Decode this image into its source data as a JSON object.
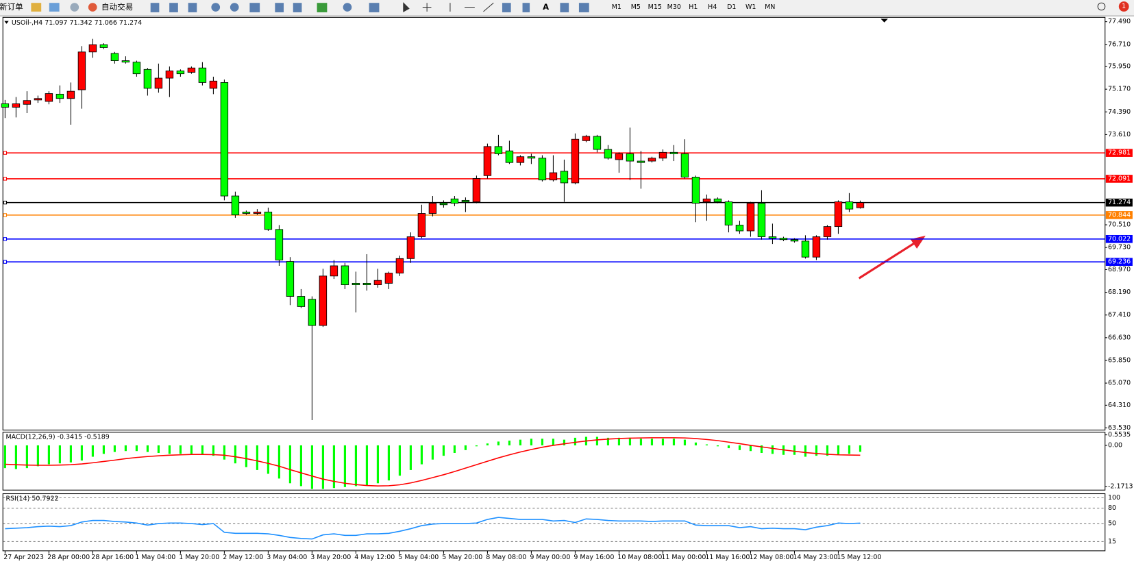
{
  "toolbar": {
    "new_order": "新订单",
    "auto_trade": "自动交易",
    "timeframes": [
      "M1",
      "M5",
      "M15",
      "M30",
      "H1",
      "H4",
      "D1",
      "W1",
      "MN"
    ],
    "badge": "1"
  },
  "chart_data": [
    {
      "type": "candlestick",
      "title": "USOil-,H4  71.097 71.342 71.066 71.274",
      "categories": [
        "27 Apr 2023",
        null,
        null,
        null,
        "28 Apr 00:00",
        null,
        null,
        null,
        "28 Apr 16:00",
        null,
        null,
        null,
        "1 May 04:00",
        null,
        null,
        null,
        "1 May 20:00",
        null,
        null,
        null,
        "2 May 12:00",
        null,
        null,
        null,
        "3 May 04:00",
        null,
        null,
        null,
        "3 May 20:00",
        null,
        null,
        null,
        "4 May 12:00",
        null,
        null,
        null,
        "5 May 04:00",
        null,
        null,
        null,
        "5 May 20:00",
        null,
        null,
        null,
        "8 May 08:00",
        null,
        null,
        null,
        "9 May 00:00",
        null,
        null,
        null,
        "9 May 16:00",
        null,
        null,
        null,
        "10 May 08:00",
        null,
        null,
        null,
        "11 May 00:00",
        null,
        null,
        null,
        "11 May 16:00",
        null,
        null,
        null,
        "12 May 08:00",
        null,
        null,
        null,
        "14 May 23:00",
        null,
        null,
        null,
        "15 May 12:00",
        null,
        null
      ],
      "open": [
        74.67,
        74.55,
        74.65,
        74.8,
        74.75,
        75.0,
        74.85,
        75.15,
        76.45,
        76.7,
        76.4,
        76.15,
        76.1,
        75.85,
        75.2,
        75.55,
        75.8,
        75.75,
        75.9,
        75.2,
        75.4,
        71.5,
        70.95,
        70.9,
        70.95,
        70.35,
        69.25,
        68.05,
        67.95,
        67.05,
        68.75,
        69.1,
        68.5,
        68.5,
        68.45,
        68.5,
        68.85,
        69.35,
        70.1,
        70.9,
        71.25,
        71.4,
        71.35,
        71.3,
        72.2,
        73.2,
        73.05,
        72.65,
        72.85,
        72.8,
        72.05,
        72.35,
        71.95,
        73.4,
        73.55,
        73.1,
        72.75,
        72.95,
        72.7,
        72.7,
        72.8,
        73.0,
        72.95,
        72.15,
        71.3,
        71.4,
        71.3,
        70.5,
        70.3,
        71.25,
        70.1,
        70.05,
        70.0,
        69.95,
        69.4,
        70.1,
        70.45,
        71.3,
        71.097
      ],
      "high": [
        74.8,
        74.9,
        75.1,
        74.95,
        75.1,
        75.3,
        75.4,
        76.65,
        76.9,
        76.75,
        76.45,
        76.3,
        76.15,
        75.9,
        76.05,
        75.95,
        75.85,
        75.95,
        76.1,
        75.6,
        75.5,
        71.65,
        71.0,
        71.05,
        71.1,
        70.5,
        69.4,
        68.3,
        68.05,
        69.0,
        69.3,
        69.2,
        68.9,
        69.5,
        69.0,
        68.9,
        69.45,
        70.25,
        71.2,
        71.5,
        71.35,
        71.5,
        71.45,
        72.2,
        73.3,
        73.6,
        73.4,
        72.9,
        72.95,
        72.9,
        72.9,
        72.75,
        73.65,
        73.6,
        73.6,
        73.25,
        73.0,
        73.85,
        73.05,
        72.85,
        73.1,
        73.25,
        73.45,
        72.2,
        71.55,
        71.45,
        71.35,
        70.65,
        71.3,
        71.7,
        70.55,
        70.1,
        70.05,
        70.15,
        70.15,
        70.5,
        71.35,
        71.6,
        71.342
      ],
      "low": [
        74.18,
        74.2,
        74.35,
        74.7,
        74.65,
        74.7,
        73.95,
        74.5,
        76.25,
        76.55,
        76.05,
        76.05,
        75.6,
        74.95,
        75.05,
        74.9,
        75.6,
        75.7,
        75.3,
        75.0,
        71.35,
        70.75,
        70.85,
        70.85,
        70.3,
        69.1,
        67.75,
        67.65,
        63.8,
        67.0,
        68.65,
        68.3,
        67.5,
        68.25,
        68.35,
        68.3,
        68.75,
        69.2,
        70.05,
        70.8,
        71.1,
        71.15,
        70.95,
        71.25,
        72.1,
        72.9,
        72.6,
        72.55,
        72.6,
        72.0,
        72.0,
        71.3,
        71.9,
        73.35,
        73.0,
        72.75,
        72.3,
        72.05,
        71.75,
        72.65,
        72.7,
        72.7,
        72.1,
        70.6,
        70.65,
        71.25,
        70.25,
        70.2,
        70.1,
        70.0,
        69.85,
        69.95,
        69.9,
        69.35,
        69.3,
        70.0,
        70.2,
        70.95,
        71.066
      ],
      "close": [
        74.55,
        74.67,
        74.78,
        74.85,
        75.02,
        74.85,
        75.1,
        76.45,
        76.7,
        76.6,
        76.15,
        76.1,
        75.7,
        75.2,
        75.55,
        75.8,
        75.7,
        75.9,
        75.4,
        75.45,
        71.5,
        70.85,
        70.9,
        70.95,
        70.35,
        69.3,
        68.05,
        67.7,
        67.05,
        68.75,
        69.1,
        68.45,
        68.45,
        68.45,
        68.6,
        68.85,
        69.35,
        70.1,
        70.9,
        71.25,
        71.2,
        71.25,
        71.3,
        72.1,
        73.2,
        72.95,
        72.65,
        72.85,
        72.8,
        72.05,
        72.3,
        71.95,
        73.45,
        73.55,
        73.1,
        72.8,
        72.95,
        72.7,
        72.65,
        72.8,
        73.0,
        72.95,
        72.15,
        71.25,
        71.4,
        71.3,
        70.5,
        70.3,
        71.25,
        70.1,
        70.05,
        70.0,
        69.95,
        69.4,
        70.1,
        70.45,
        71.3,
        71.05,
        71.274
      ],
      "up_color": "#ff0000",
      "down_color": "#00ff00",
      "ylim": [
        63.455,
        77.639
      ],
      "yticks": [
        {
          "value": 77.49,
          "label": "77.490"
        },
        {
          "value": 76.71,
          "label": "76.710"
        },
        {
          "value": 75.95,
          "label": "75.950"
        },
        {
          "value": 75.17,
          "label": "75.170"
        },
        {
          "value": 74.39,
          "label": "74.390"
        },
        {
          "value": 73.61,
          "label": "73.610"
        },
        {
          "value": 70.51,
          "label": "70.510"
        },
        {
          "value": 69.73,
          "label": "69.730"
        },
        {
          "value": 68.97,
          "label": "68.970"
        },
        {
          "value": 68.19,
          "label": "68.190"
        },
        {
          "value": 67.41,
          "label": "67.410"
        },
        {
          "value": 66.63,
          "label": "66.630"
        },
        {
          "value": 65.85,
          "label": "65.850"
        },
        {
          "value": 65.07,
          "label": "65.070"
        },
        {
          "value": 64.31,
          "label": "64.310"
        },
        {
          "value": 63.53,
          "label": "63.530"
        }
      ],
      "levels": [
        {
          "value": 72.981,
          "color": "#ff0000"
        },
        {
          "value": 72.091,
          "color": "#ff0000"
        },
        {
          "value": 71.274,
          "color": "#000000"
        },
        {
          "value": 70.844,
          "color": "#ff8000"
        },
        {
          "value": 70.022,
          "color": "#0000ff"
        },
        {
          "value": 69.236,
          "color": "#0000ff"
        }
      ]
    },
    {
      "type": "combo",
      "title": "MACD(12,26,9) -0.3415 -0.5189",
      "series": [
        {
          "kind": "bar",
          "color": "#00ff00",
          "values": [
            -1.2,
            -1.25,
            -1.2,
            -1.1,
            -1.0,
            -0.95,
            -0.9,
            -0.8,
            -0.6,
            -0.45,
            -0.35,
            -0.3,
            -0.3,
            -0.35,
            -0.4,
            -0.45,
            -0.45,
            -0.45,
            -0.5,
            -0.55,
            -0.75,
            -0.95,
            -1.15,
            -1.3,
            -1.5,
            -1.75,
            -2.0,
            -2.15,
            -2.3,
            -2.3,
            -2.25,
            -2.2,
            -2.15,
            -2.1,
            -2.0,
            -1.85,
            -1.6,
            -1.3,
            -1.0,
            -0.75,
            -0.55,
            -0.4,
            -0.25,
            -0.05,
            0.1,
            0.2,
            0.25,
            0.3,
            0.35,
            0.35,
            0.35,
            0.3,
            0.4,
            0.45,
            0.45,
            0.4,
            0.4,
            0.4,
            0.35,
            0.35,
            0.35,
            0.35,
            0.3,
            0.15,
            0.05,
            -0.05,
            -0.15,
            -0.25,
            -0.3,
            -0.4,
            -0.45,
            -0.5,
            -0.5,
            -0.6,
            -0.55,
            -0.55,
            -0.5,
            -0.45,
            -0.3415
          ]
        },
        {
          "kind": "line",
          "color": "#ff0000",
          "values": [
            -1.0,
            -1.02,
            -1.04,
            -1.05,
            -1.05,
            -1.04,
            -1.02,
            -0.98,
            -0.92,
            -0.85,
            -0.78,
            -0.7,
            -0.64,
            -0.59,
            -0.55,
            -0.52,
            -0.5,
            -0.48,
            -0.48,
            -0.49,
            -0.52,
            -0.6,
            -0.7,
            -0.82,
            -0.95,
            -1.1,
            -1.28,
            -1.45,
            -1.62,
            -1.78,
            -1.9,
            -2.0,
            -2.07,
            -2.12,
            -2.14,
            -2.13,
            -2.08,
            -1.98,
            -1.85,
            -1.7,
            -1.55,
            -1.38,
            -1.2,
            -1.02,
            -0.84,
            -0.66,
            -0.5,
            -0.35,
            -0.22,
            -0.1,
            0.0,
            0.08,
            0.16,
            0.23,
            0.29,
            0.33,
            0.36,
            0.38,
            0.39,
            0.4,
            0.4,
            0.4,
            0.39,
            0.36,
            0.31,
            0.25,
            0.17,
            0.09,
            0.0,
            -0.08,
            -0.16,
            -0.24,
            -0.31,
            -0.38,
            -0.43,
            -0.47,
            -0.5,
            -0.51,
            -0.5189
          ]
        }
      ],
      "ylim": [
        -2.36,
        0.69
      ],
      "yticks": [
        0.5535,
        {
          "value": 0,
          "label": "0.00"
        },
        -2.1713
      ]
    },
    {
      "type": "line",
      "title": "RSI(14) 50.7922",
      "color": "#1e90ff",
      "values": [
        40,
        41,
        42,
        44,
        45,
        44,
        46,
        53,
        56,
        56,
        54,
        53,
        51,
        47,
        50,
        51,
        51,
        50,
        48,
        50,
        33,
        31,
        31,
        31,
        30,
        27,
        23,
        21,
        20,
        28,
        30,
        27,
        27,
        30,
        30,
        31,
        35,
        40,
        46,
        49,
        50,
        50,
        50,
        51,
        58,
        62,
        60,
        58,
        58,
        58,
        55,
        56,
        52,
        59,
        58,
        56,
        55,
        55,
        55,
        54,
        55,
        55,
        55,
        47,
        46,
        46,
        46,
        42,
        44,
        40,
        41,
        40,
        40,
        38,
        43,
        46,
        51,
        50,
        50.7922
      ],
      "ylim": [
        -3,
        108
      ],
      "yticks": [
        100,
        80,
        50,
        15
      ],
      "grid": true
    }
  ]
}
